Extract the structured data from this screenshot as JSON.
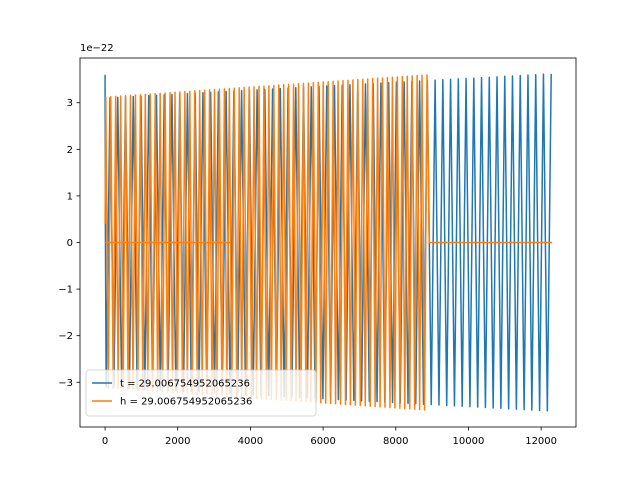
{
  "chart_data": {
    "type": "line",
    "title": "",
    "xlabel": "",
    "ylabel": "",
    "y_offset_text": "1e−22",
    "xlim": [
      -690,
      12960
    ],
    "ylim": [
      -3.96,
      3.96
    ],
    "x_ticks": [
      0,
      2000,
      4000,
      6000,
      8000,
      10000,
      12000
    ],
    "x_tick_labels": [
      "0",
      "2000",
      "4000",
      "6000",
      "8000",
      "10000",
      "12000"
    ],
    "y_ticks": [
      -3,
      -2,
      -1,
      0,
      1,
      2,
      3
    ],
    "y_tick_labels": [
      "−3",
      "−2",
      "−1",
      "0",
      "1",
      "2",
      "3"
    ],
    "grid": false,
    "legend_position": "lower-left",
    "series": [
      {
        "name": "t = 29.006754952065236",
        "color": "#1f77b4",
        "description_of_shape": "oscillation from x=0 to x=12300, amplitude 3.1 rising to 3.62 (x1e-22), starting spike to 3.6 at x=0",
        "x_start": 0,
        "x_end": 12300,
        "period": 213,
        "amp_start": 3.1,
        "amp_end": 3.62,
        "initial_spike": 3.6
      },
      {
        "name": "h = 29.006754952065236",
        "color": "#ff7f0e",
        "description_of_shape": "oscillation from x=0 to x=8900 with amplitude 3.12 rising to 3.6 (x1e-22), then flat at 0 until x=12300; flat segment at 0 from x=0 to x=3450",
        "x_start": 0,
        "x_osc_end": 8900,
        "x_end": 12300,
        "period": 136,
        "amp_start": 3.12,
        "amp_end": 3.6,
        "zero_line_segment": [
          0,
          3450
        ]
      }
    ]
  }
}
